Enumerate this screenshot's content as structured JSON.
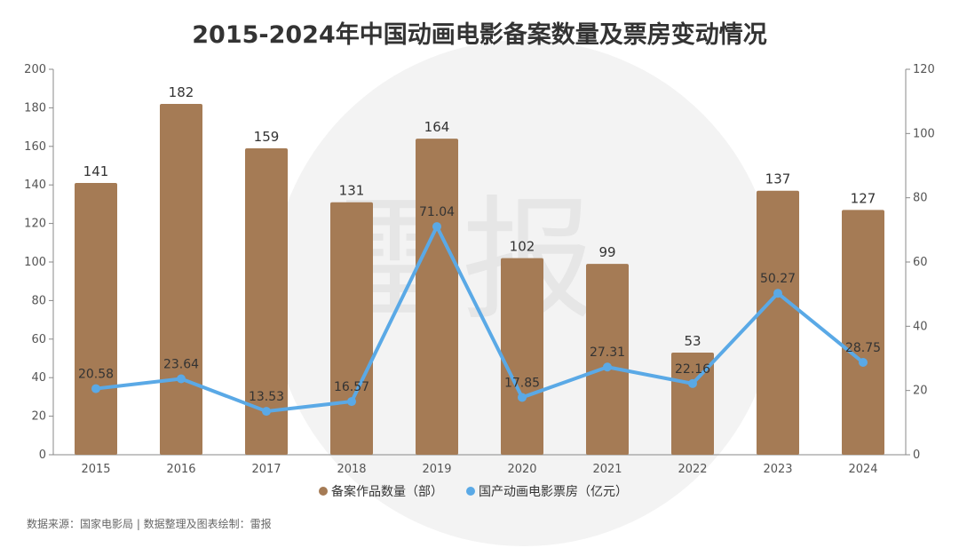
{
  "title": "2015-2024年中国动画电影备案数量及票房变动情况",
  "watermark": "雷报",
  "source": "数据来源：国家电影局 | 数据整理及图表绘制：雷报",
  "colors": {
    "bar": "#a57b55",
    "line": "#5aa9e6",
    "axis": "#666666",
    "watermark_circle": "#f3f3f3"
  },
  "chart_data": {
    "type": "bar",
    "categories": [
      "2015",
      "2016",
      "2017",
      "2018",
      "2019",
      "2020",
      "2021",
      "2022",
      "2023",
      "2024"
    ],
    "series": [
      {
        "name": "备案作品数量（部）",
        "type": "bar",
        "axis": "left",
        "values": [
          141,
          182,
          159,
          131,
          164,
          102,
          99,
          53,
          137,
          127
        ]
      },
      {
        "name": "国产动画电影票房（亿元）",
        "type": "line",
        "axis": "right",
        "values": [
          20.58,
          23.64,
          13.53,
          16.57,
          71.04,
          17.85,
          27.31,
          22.16,
          50.27,
          28.75
        ]
      }
    ],
    "ylim_left": [
      0,
      200
    ],
    "yticks_left": [
      0,
      20,
      40,
      60,
      80,
      100,
      120,
      140,
      160,
      180,
      200
    ],
    "ylim_right": [
      0,
      120
    ],
    "yticks_right": [
      0,
      20,
      40,
      60,
      80,
      100,
      120
    ],
    "legend_position": "bottom",
    "grid": false
  }
}
